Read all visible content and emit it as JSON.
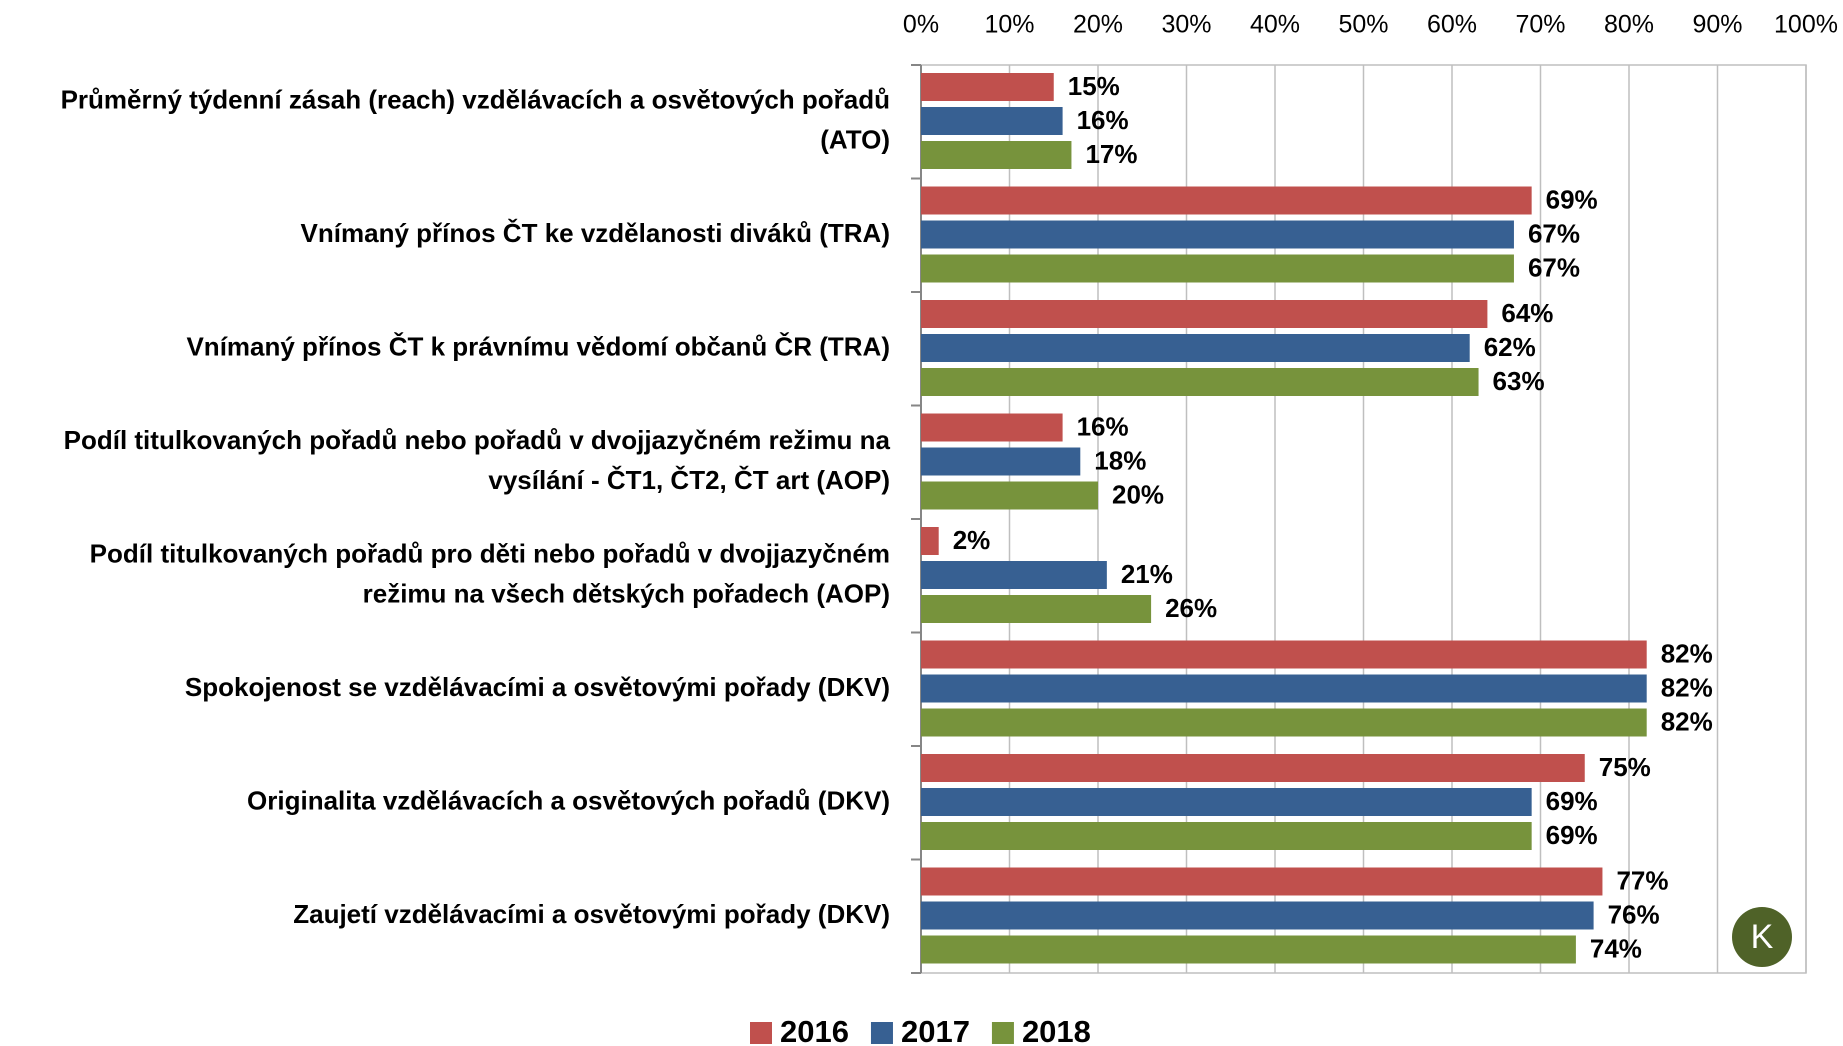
{
  "chart_data": {
    "type": "bar",
    "orientation": "horizontal",
    "categories": [
      [
        "Průměrný týdenní zásah (reach) vzdělávacích a osvětových pořadů",
        "(ATO)"
      ],
      [
        "Vnímaný přínos ČT ke vzdělanosti diváků (TRA)"
      ],
      [
        "Vnímaný přínos ČT k právnímu vědomí občanů ČR (TRA)"
      ],
      [
        "Podíl titulkovaných pořadů nebo pořadů v dvojjazyčném režimu na",
        "vysílání - ČT1, ČT2, ČT art (AOP)"
      ],
      [
        "Podíl titulkovaných pořadů pro děti nebo pořadů v dvojjazyčném",
        "režimu na všech dětských pořadech (AOP)"
      ],
      [
        "Spokojenost se vzdělávacími a osvětovými pořady (DKV)"
      ],
      [
        "Originalita vzdělávacích a osvětových pořadů (DKV)"
      ],
      [
        "Zaujetí vzdělávacími a osvětovými pořady (DKV)"
      ]
    ],
    "series": [
      {
        "name": "2016",
        "color": "#c0504d",
        "values": [
          15,
          69,
          64,
          16,
          2,
          82,
          75,
          77
        ],
        "value_labels": [
          "15%",
          "69%",
          "64%",
          "16%",
          "2%",
          "82%",
          "75%",
          "77%"
        ]
      },
      {
        "name": "2017",
        "color": "#376092",
        "values": [
          16,
          67,
          62,
          18,
          21,
          82,
          69,
          76
        ],
        "value_labels": [
          "16%",
          "67%",
          "62%",
          "18%",
          "21%",
          "82%",
          "69%",
          "76%"
        ]
      },
      {
        "name": "2018",
        "color": "#77933c",
        "values": [
          17,
          67,
          63,
          20,
          26,
          82,
          69,
          74
        ],
        "value_labels": [
          "17%",
          "67%",
          "63%",
          "20%",
          "26%",
          "82%",
          "69%",
          "74%"
        ]
      }
    ],
    "xlim": [
      0,
      100
    ],
    "xticks": [
      {
        "value": 0,
        "label": "0%"
      },
      {
        "value": 10,
        "label": "10%"
      },
      {
        "value": 20,
        "label": "20%"
      },
      {
        "value": 30,
        "label": "30%"
      },
      {
        "value": 40,
        "label": "40%"
      },
      {
        "value": 50,
        "label": "50%"
      },
      {
        "value": 60,
        "label": "60%"
      },
      {
        "value": 70,
        "label": "70%"
      },
      {
        "value": 80,
        "label": "80%"
      },
      {
        "value": 90,
        "label": "90%"
      },
      {
        "value": 100,
        "label": "100%"
      }
    ],
    "grid": true,
    "legend": "bottom",
    "logo": "K"
  }
}
